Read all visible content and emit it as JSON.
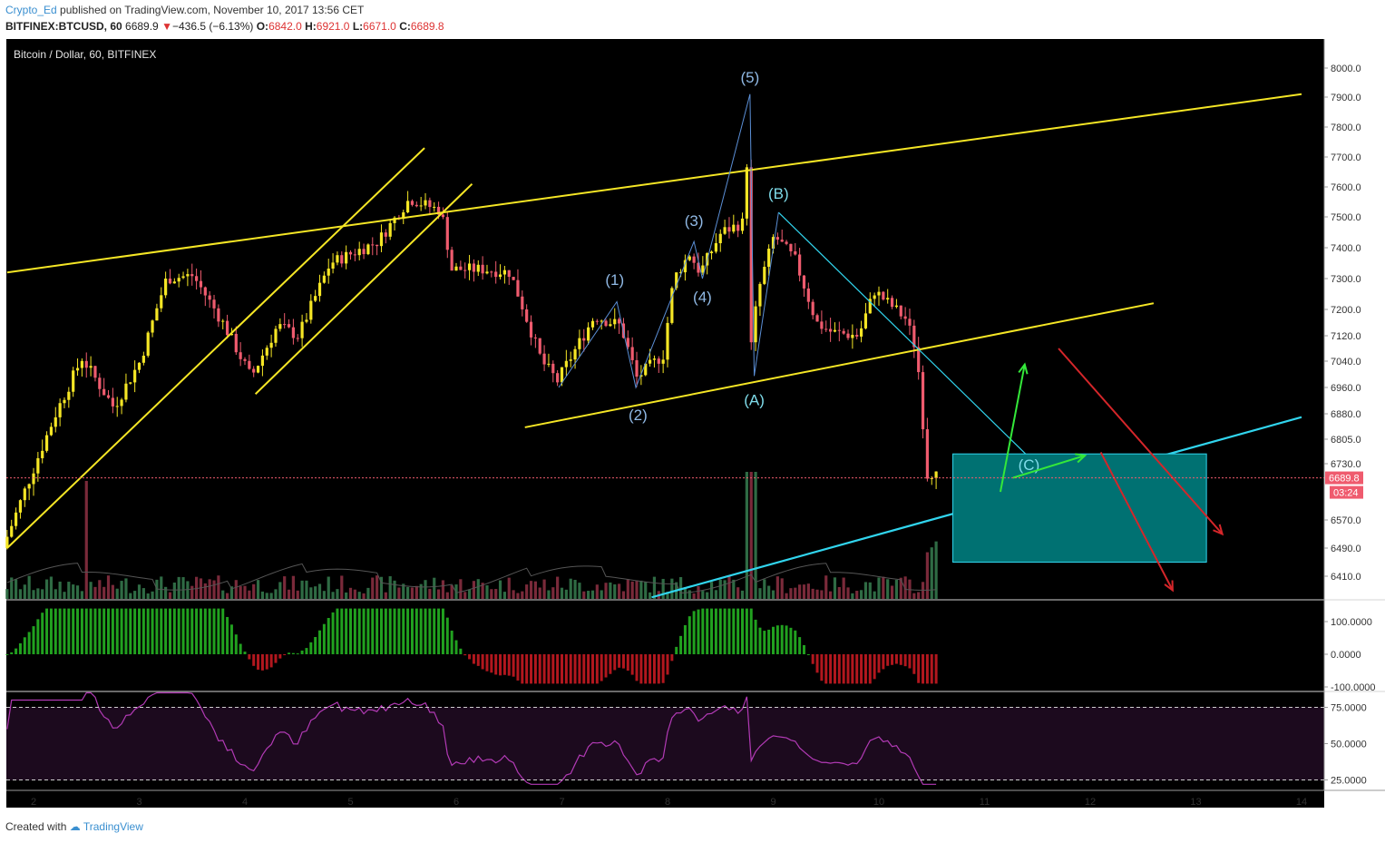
{
  "header": {
    "author": "Crypto_Ed",
    "published": "published on TradingView.com, November 10, 2017 13:56 CET",
    "symbol": "BITFINEX:BTCUSD, 60",
    "last": "6689.9",
    "change": "−436.5 (−6.13%)",
    "o_label": "O:",
    "o_val": "6842.0",
    "h_label": "H:",
    "h_val": "6921.0",
    "l_label": "L:",
    "l_val": "6671.0",
    "c_label": "C:",
    "c_val": "6689.8"
  },
  "footer": {
    "created_with": "Created with",
    "brand": "TradingView"
  },
  "chart_data": {
    "type": "candlestick",
    "title": "Bitcoin / Dollar, 60, BITFINEX",
    "x_ticks": [
      "2",
      "3",
      "4",
      "5",
      "6",
      "7",
      "8",
      "9",
      "10",
      "11",
      "12",
      "13",
      "14"
    ],
    "price_ticks": [
      "8000.0",
      "7900.0",
      "7800.0",
      "7700.0",
      "7600.0",
      "7500.0",
      "7400.0",
      "7300.0",
      "7200.0",
      "7120.0",
      "7040.0",
      "6960.0",
      "6880.0",
      "6805.0",
      "6730.0",
      "6570.0",
      "6490.0",
      "6410.0"
    ],
    "last_price_label": "6689.8",
    "countdown_label": "03:24",
    "wave_labels": [
      "(1)",
      "(2)",
      "(3)",
      "(4)",
      "(5)",
      "(A)",
      "(B)",
      "(C)"
    ],
    "wave_points": [
      {
        "label": "start",
        "day": 6.97,
        "price": 6960
      },
      {
        "label": "(1)",
        "day": 7.52,
        "price": 7225
      },
      {
        "label": "(2)",
        "day": 7.7,
        "price": 6960
      },
      {
        "label": "(3)",
        "day": 8.25,
        "price": 7420
      },
      {
        "label": "(4)",
        "day": 8.33,
        "price": 7300
      },
      {
        "label": "(5)",
        "day": 8.78,
        "price": 7910
      },
      {
        "label": "(A)",
        "day": 8.82,
        "price": 6995
      },
      {
        "label": "(B)",
        "day": 9.05,
        "price": 7515
      },
      {
        "label": "(C)",
        "day": 11.42,
        "price": 6745
      }
    ],
    "macd_ticks": [
      "100.0000",
      "0.0000",
      "-100.0000"
    ],
    "rsi_ticks": [
      "75.0000",
      "50.0000",
      "25.0000"
    ],
    "colors": {
      "up": "#f5e625",
      "down": "#ef5b6e",
      "channel": "#f5e625",
      "trend": "#31d5ee",
      "target_box": "#007172",
      "arrow_up": "#34e83a",
      "arrow_down": "#d5262a",
      "rsi": "#b23ab5",
      "macd_pos": "#21a11f",
      "macd_neg": "#b2171e",
      "wave_text": "#90b9e5"
    }
  }
}
